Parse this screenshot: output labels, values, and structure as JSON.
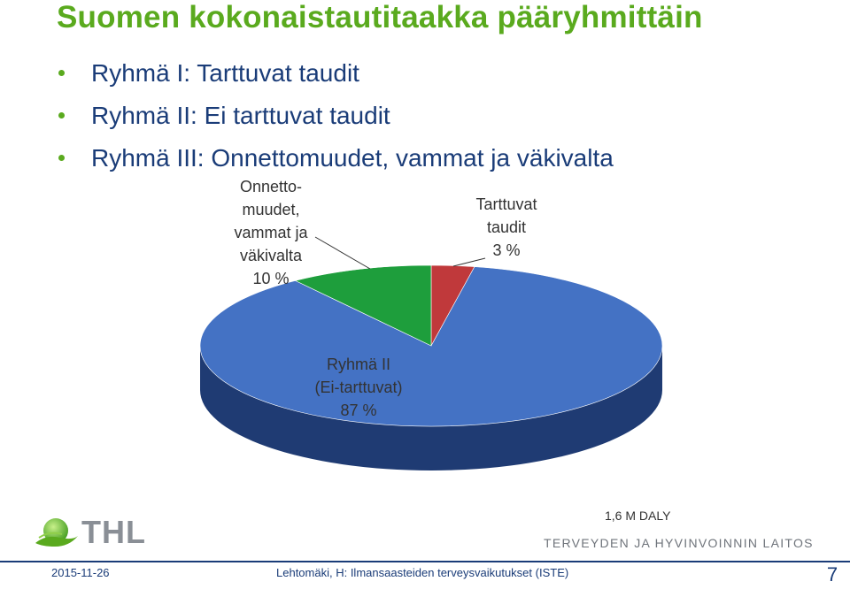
{
  "title": "Suomen kokonaistautitaakka pääryhmittäin",
  "bullets": [
    "Ryhmä I: Tarttuvat taudit",
    "Ryhmä II: Ei tarttuvat taudit",
    "Ryhmä III: Onnettomuudet, vammat ja väkivalta"
  ],
  "chart_data": {
    "type": "pie",
    "style": "3d",
    "slices": [
      {
        "label_lines": [
          "Tarttuvat",
          "taudit",
          "3 %"
        ],
        "value": 3,
        "color": "#c0393b"
      },
      {
        "label_lines": [
          "Ryhmä II",
          "(Ei-tarttuvat)",
          "87 %"
        ],
        "value": 87,
        "color": "#4472c4"
      },
      {
        "label_lines": [
          "Onnetto-",
          "muudet,",
          "vammat ja",
          "väkivalta",
          "10 %"
        ],
        "value": 10,
        "color": "#1e9e3c"
      }
    ],
    "annotation": "1,6 M DALY"
  },
  "footer": {
    "date": "2015-11-26",
    "text": "Lehtomäki, H: Ilmansaasteiden terveysvaikutukset (ISTE)",
    "page": "7"
  },
  "logo": {
    "text": "THL",
    "institute": "TERVEYDEN JA HYVINVOINNIN LAITOS"
  }
}
